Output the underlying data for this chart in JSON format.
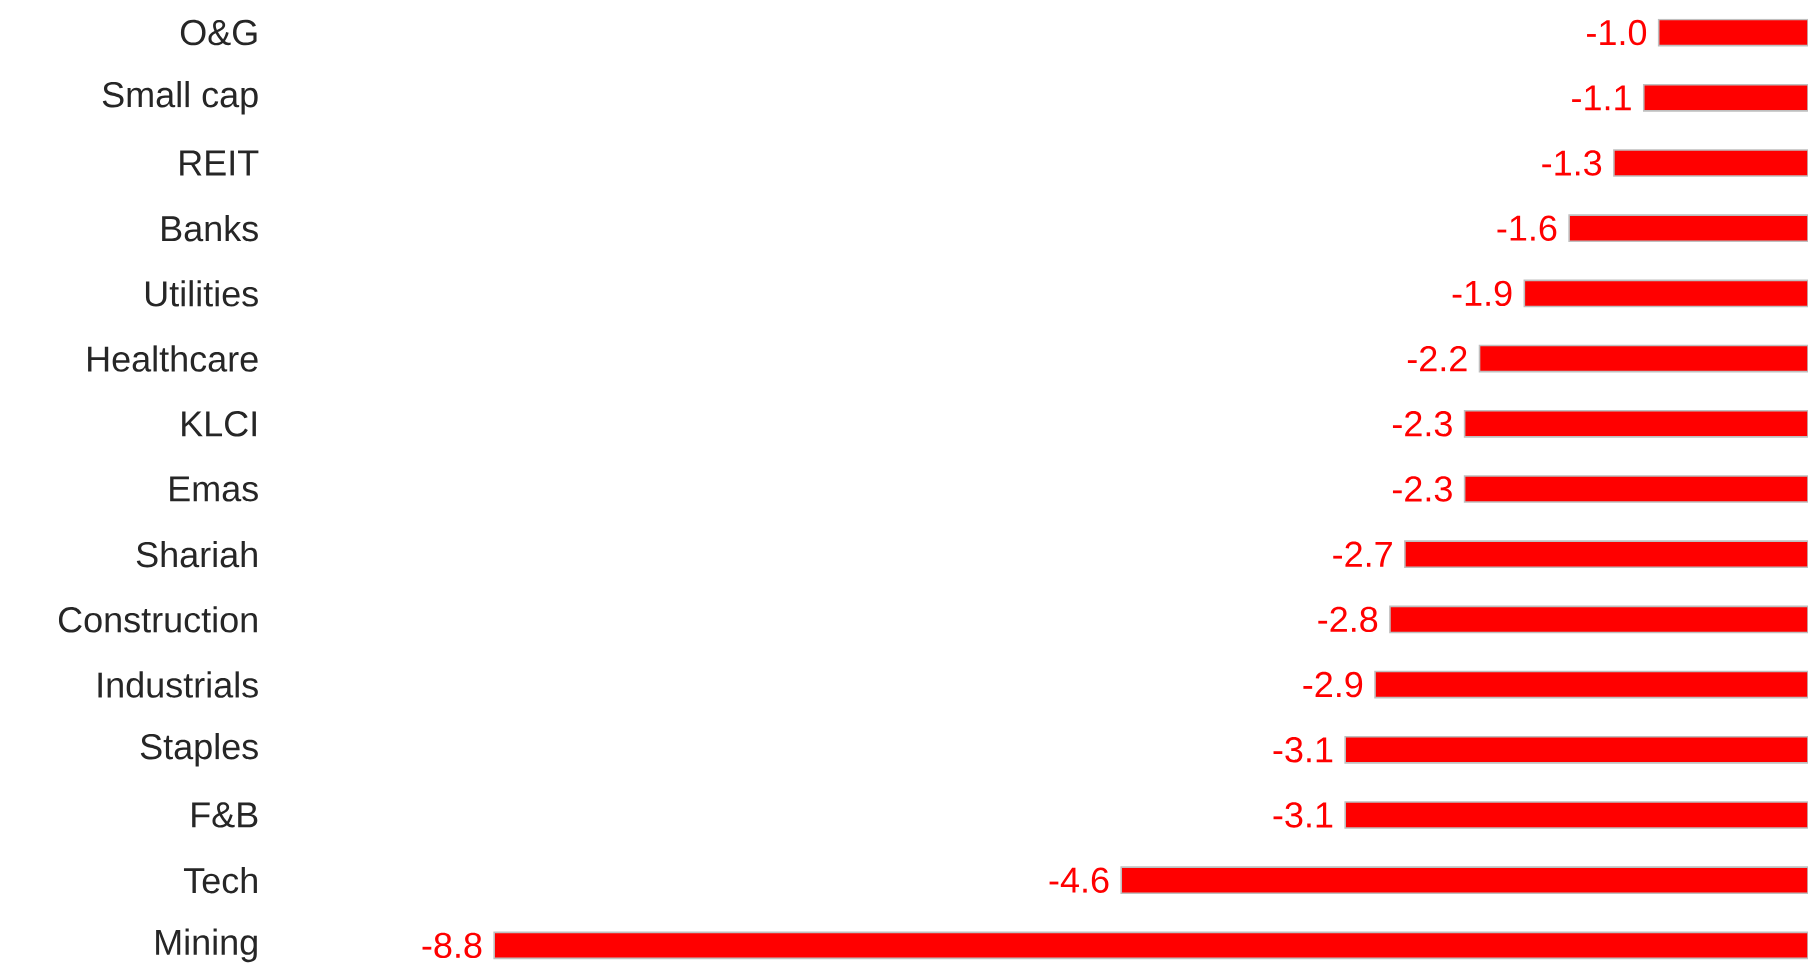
{
  "chart_data": {
    "type": "bar",
    "orientation": "horizontal",
    "categories": [
      "O&G",
      "Small cap",
      "REIT",
      "Banks",
      "Utilities",
      "Healthcare",
      "KLCI",
      "Emas",
      "Shariah",
      "Construction",
      "Industrials",
      "Staples",
      "F&B",
      "Tech",
      "Mining"
    ],
    "values": [
      -1.0,
      -1.1,
      -1.3,
      -1.6,
      -1.9,
      -2.2,
      -2.3,
      -2.3,
      -2.7,
      -2.8,
      -2.9,
      -3.1,
      -3.1,
      -4.6,
      -8.8
    ],
    "value_labels": [
      "-1.0",
      "-1.1",
      "-1.3",
      "-1.6",
      "-1.9",
      "-2.2",
      "-2.3",
      "-2.3",
      "-2.7",
      "-2.8",
      "-2.9",
      "-3.1",
      "-3.1",
      "-4.6",
      "-8.8"
    ],
    "color": "#ff0000"
  }
}
